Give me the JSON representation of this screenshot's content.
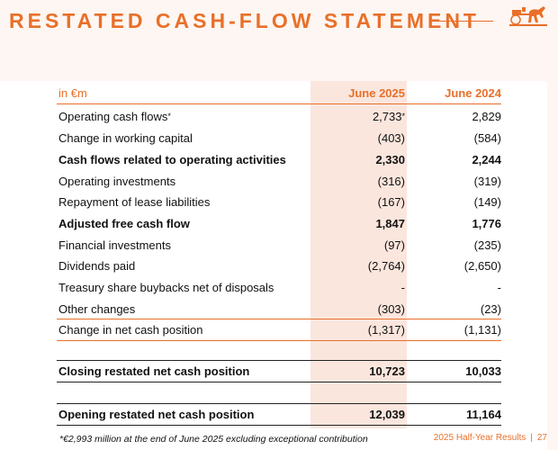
{
  "title": "RESTATED CASH-FLOW STATEMENT",
  "colors": {
    "accent": "#e8702a",
    "highlight": "#fbe6dd",
    "background": "#fdf6f2"
  },
  "logo_icon": "horse-carriage-logo",
  "table": {
    "unit_label": "in €m",
    "col1": "June 2025",
    "col2": "June 2024",
    "rows": [
      {
        "label": "Operating cash flows",
        "label_mark": "*",
        "v1": "2,733",
        "v1_mark": "*",
        "v2": "2,829"
      },
      {
        "label": "Change in working capital",
        "v1": "(403)",
        "v2": "(584)"
      },
      {
        "label": "Cash flows related to operating activities",
        "v1": "2,330",
        "v2": "2,244"
      },
      {
        "label": "Operating investments",
        "v1": "(316)",
        "v2": "(319)"
      },
      {
        "label": "Repayment of lease liabilities",
        "v1": "(167)",
        "v2": "(149)"
      },
      {
        "label": "Adjusted free cash flow",
        "v1": "1,847",
        "v2": "1,776"
      },
      {
        "label": "Financial investments",
        "v1": "(97)",
        "v2": "(235)"
      },
      {
        "label": "Dividends paid",
        "v1": "(2,764)",
        "v2": "(2,650)"
      },
      {
        "label": "Treasury share buybacks net of disposals",
        "v1": "-",
        "v2": "-"
      },
      {
        "label": "Other changes",
        "v1": "(303)",
        "v2": "(23)"
      },
      {
        "label": "Change in net cash position",
        "v1": "(1,317)",
        "v2": "(1,131)"
      },
      {
        "label": "Closing restated net cash position",
        "v1": "10,723",
        "v2": "10,033"
      },
      {
        "label": "Opening restated net cash position",
        "v1": "12,039",
        "v2": "11,164"
      }
    ]
  },
  "footnote": "*€2,993 million at the end of June 2025 excluding exceptional contribution",
  "footer": {
    "report": "2025 Half-Year Results",
    "separator": "|",
    "page": "27"
  }
}
